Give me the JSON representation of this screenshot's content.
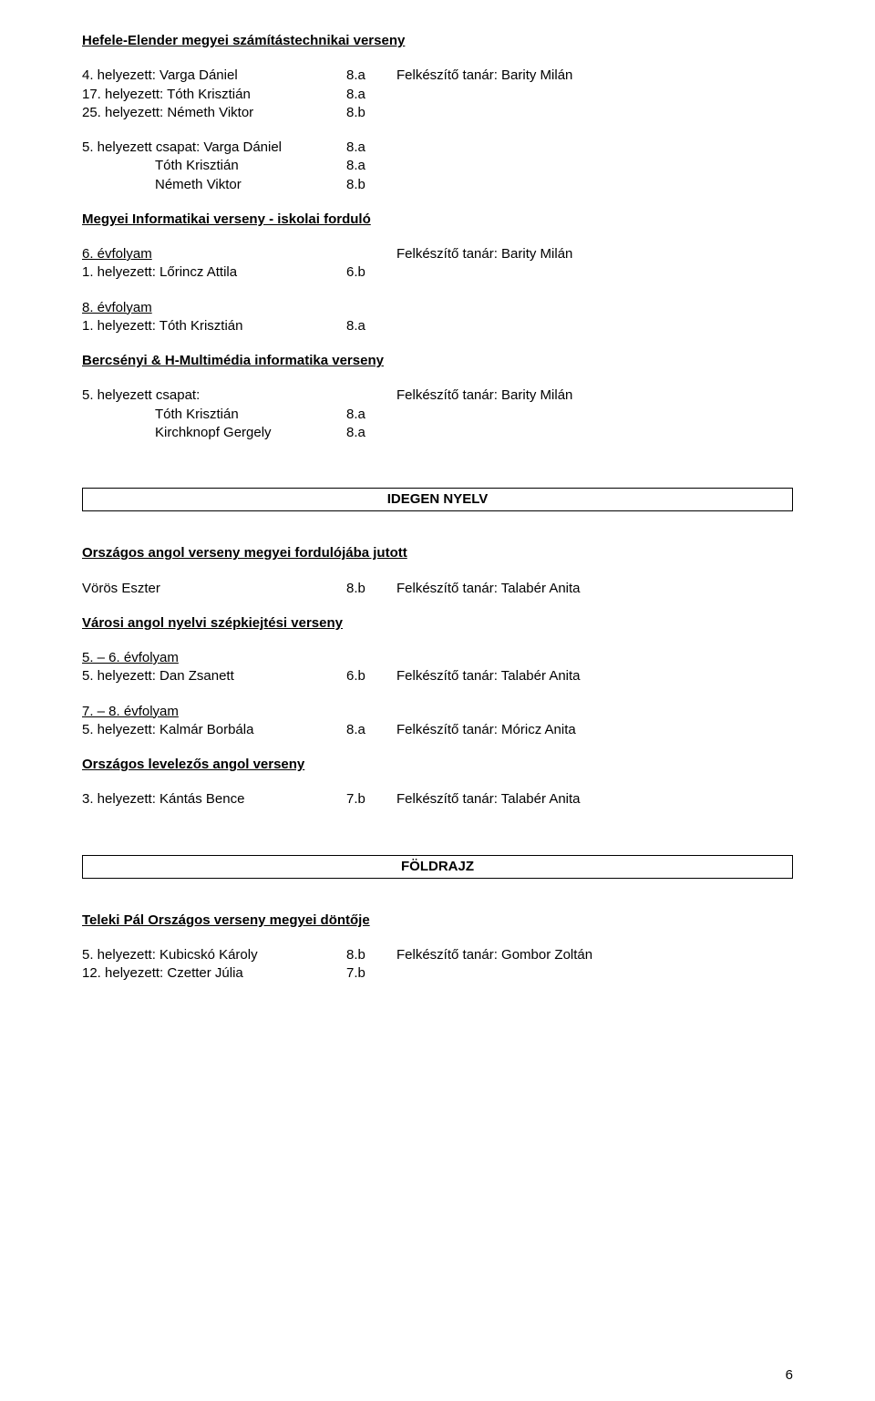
{
  "colors": {
    "text": "#000000",
    "background": "#ffffff",
    "border": "#000000"
  },
  "typography": {
    "font_family": "Arial, Helvetica, sans-serif",
    "font_size_pt": 11,
    "line_height": 1.35
  },
  "page_number": "6",
  "hefele": {
    "title": "Hefele-Elender megyei számítástechnikai verseny",
    "rows": [
      {
        "label": "4. helyezett: Varga Dániel",
        "col": "8.a",
        "note": "Felkészítő tanár: Barity Milán"
      },
      {
        "label": "17. helyezett: Tóth Krisztián",
        "col": "8.a",
        "note": ""
      },
      {
        "label": "25. helyezett: Németh Viktor",
        "col": "8.b",
        "note": ""
      }
    ],
    "team_label": "5. helyezett csapat: Varga Dániel",
    "team_col": "8.a",
    "team_rows": [
      {
        "label": "Tóth Krisztián",
        "col": "8.a"
      },
      {
        "label": "Németh Viktor",
        "col": "8.b"
      }
    ]
  },
  "megyei": {
    "title": "Megyei Informatikai verseny - iskolai forduló",
    "g6": {
      "heading": "6. évfolyam",
      "note": "Felkészítő tanár: Barity Milán",
      "row": {
        "label": "1. helyezett: Lőrincz Attila",
        "col": "6.b"
      }
    },
    "g8": {
      "heading": "8. évfolyam",
      "row": {
        "label": "1. helyezett: Tóth Krisztián",
        "col": "8.a"
      }
    }
  },
  "bercsenyi": {
    "title": "Bercsényi & H-Multimédia informatika verseny",
    "team_label": "5. helyezett csapat:",
    "team_note": "Felkészítő tanár: Barity Milán",
    "rows": [
      {
        "label": "Tóth Krisztián",
        "col": "8.a"
      },
      {
        "label": "Kirchknopf Gergely",
        "col": "8.a"
      }
    ]
  },
  "idegen": {
    "box": "IDEGEN NYELV",
    "orszagos_title": "Országos angol verseny megyei fordulójába jutott",
    "voros": {
      "label": "Vörös Eszter",
      "col": "8.b",
      "note": "Felkészítő tanár: Talabér Anita"
    },
    "varosi_title": "Városi angol nyelvi szépkiejtési verseny",
    "g56": {
      "heading": "5. – 6. évfolyam",
      "row": {
        "label": "5. helyezett: Dan Zsanett",
        "col": "6.b",
        "note": "Felkészítő tanár: Talabér Anita"
      }
    },
    "g78": {
      "heading": "7. – 8. évfolyam",
      "row": {
        "label": "5. helyezett: Kalmár Borbála",
        "col": "8.a",
        "note": "Felkészítő tanár: Móricz Anita"
      }
    },
    "levelezos_title": "Országos levelezős angol verseny",
    "kantas": {
      "label": "3. helyezett: Kántás Bence",
      "col": "7.b",
      "note": "Felkészítő tanár: Talabér Anita"
    }
  },
  "foldrajz": {
    "box": "FÖLDRAJZ",
    "title": "Teleki Pál Országos verseny megyei döntője",
    "rows": [
      {
        "label": "5. helyezett: Kubicskó Károly",
        "col": "8.b",
        "note": "Felkészítő tanár: Gombor Zoltán"
      },
      {
        "label": "12. helyezett: Czetter Júlia",
        "col": "7.b",
        "note": ""
      }
    ]
  }
}
